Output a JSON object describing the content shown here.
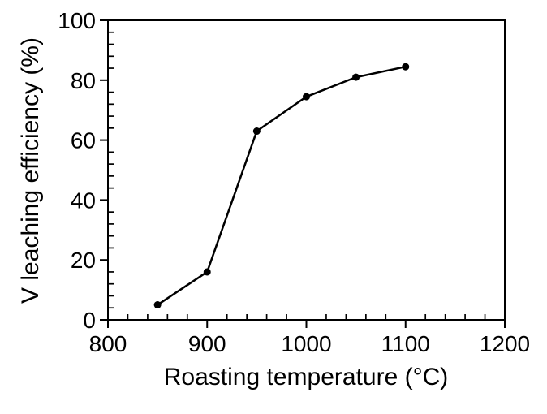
{
  "chart_data": {
    "type": "line",
    "title": "",
    "xlabel": "Roasting temperature (°C)",
    "ylabel": "V leaching efficiency (%)",
    "xlim": [
      800,
      1200
    ],
    "ylim": [
      0,
      100
    ],
    "x_major_ticks": [
      800,
      900,
      1000,
      1100,
      1200
    ],
    "y_major_ticks": [
      0,
      20,
      40,
      60,
      80,
      100
    ],
    "x_minor_step": 20,
    "y_minor_step": 4,
    "grid": false,
    "legend": "none",
    "plot_border": true,
    "series": [
      {
        "name": "V leaching efficiency",
        "x": [
          850,
          900,
          950,
          1000,
          1050,
          1100
        ],
        "y": [
          5,
          16,
          63,
          74.5,
          81,
          84.5
        ]
      }
    ],
    "line_color": "#000000",
    "marker_color": "#000000",
    "background_color": "#ffffff",
    "text_color": "#000000"
  }
}
